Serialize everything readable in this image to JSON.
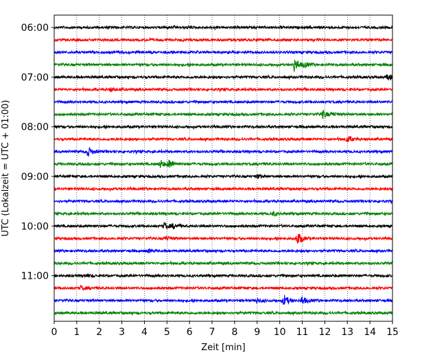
{
  "chart_data": {
    "type": "line",
    "title": "",
    "xlabel": "Zeit  [min]",
    "ylabel": "UTC (Lokalzeit = UTC + 01:00)",
    "xlim": [
      0,
      15
    ],
    "x_ticks": [
      0,
      1,
      2,
      3,
      4,
      5,
      6,
      7,
      8,
      9,
      10,
      11,
      12,
      13,
      14,
      15
    ],
    "y_tick_labels": [
      "06:00",
      "07:00",
      "08:00",
      "09:00",
      "10:00",
      "11:00"
    ],
    "vertical_grid": "dotted",
    "trace_colors": [
      "#000000",
      "#ff0000",
      "#0000ff",
      "#008000"
    ],
    "traces": [
      {
        "start": "06:00",
        "events": []
      },
      {
        "start": "06:15",
        "events": []
      },
      {
        "start": "06:30",
        "events": []
      },
      {
        "start": "06:45",
        "events": [
          {
            "t": 10.65,
            "amp": 1.0
          },
          {
            "t": 11.1,
            "amp": 0.35
          }
        ]
      },
      {
        "start": "07:00",
        "events": [
          {
            "t": 14.8,
            "amp": 0.45
          }
        ]
      },
      {
        "start": "07:15",
        "events": [
          {
            "t": 2.5,
            "amp": 0.25
          }
        ]
      },
      {
        "start": "07:30",
        "events": []
      },
      {
        "start": "07:45",
        "events": [
          {
            "t": 11.9,
            "amp": 0.6
          },
          {
            "t": 12.3,
            "amp": 0.25
          }
        ]
      },
      {
        "start": "08:00",
        "events": []
      },
      {
        "start": "08:15",
        "events": [
          {
            "t": 13.0,
            "amp": 0.5
          }
        ]
      },
      {
        "start": "08:30",
        "events": [
          {
            "t": 1.5,
            "amp": 0.75
          }
        ]
      },
      {
        "start": "08:45",
        "events": [
          {
            "t": 4.7,
            "amp": 0.6
          },
          {
            "t": 5.1,
            "amp": 0.6
          }
        ]
      },
      {
        "start": "09:00",
        "events": [
          {
            "t": 9.0,
            "amp": 0.25
          }
        ]
      },
      {
        "start": "09:15",
        "events": []
      },
      {
        "start": "09:30",
        "events": []
      },
      {
        "start": "09:45",
        "events": [
          {
            "t": 9.7,
            "amp": 0.3
          }
        ]
      },
      {
        "start": "10:00",
        "events": [
          {
            "t": 4.9,
            "amp": 0.55
          },
          {
            "t": 5.3,
            "amp": 0.3
          }
        ]
      },
      {
        "start": "10:15",
        "events": [
          {
            "t": 10.8,
            "amp": 1.0
          },
          {
            "t": 4.95,
            "amp": 0.35
          }
        ]
      },
      {
        "start": "10:30",
        "events": [
          {
            "t": 4.2,
            "amp": 0.25
          }
        ]
      },
      {
        "start": "10:45",
        "events": []
      },
      {
        "start": "11:00",
        "events": [
          {
            "t": 1.4,
            "amp": 0.2
          }
        ]
      },
      {
        "start": "11:15",
        "events": [
          {
            "t": 1.2,
            "amp": 0.35
          }
        ]
      },
      {
        "start": "11:30",
        "events": [
          {
            "t": 10.2,
            "amp": 0.8
          },
          {
            "t": 11.0,
            "amp": 0.55
          },
          {
            "t": 9.0,
            "amp": 0.35
          }
        ]
      },
      {
        "start": "11:45",
        "events": []
      }
    ]
  }
}
